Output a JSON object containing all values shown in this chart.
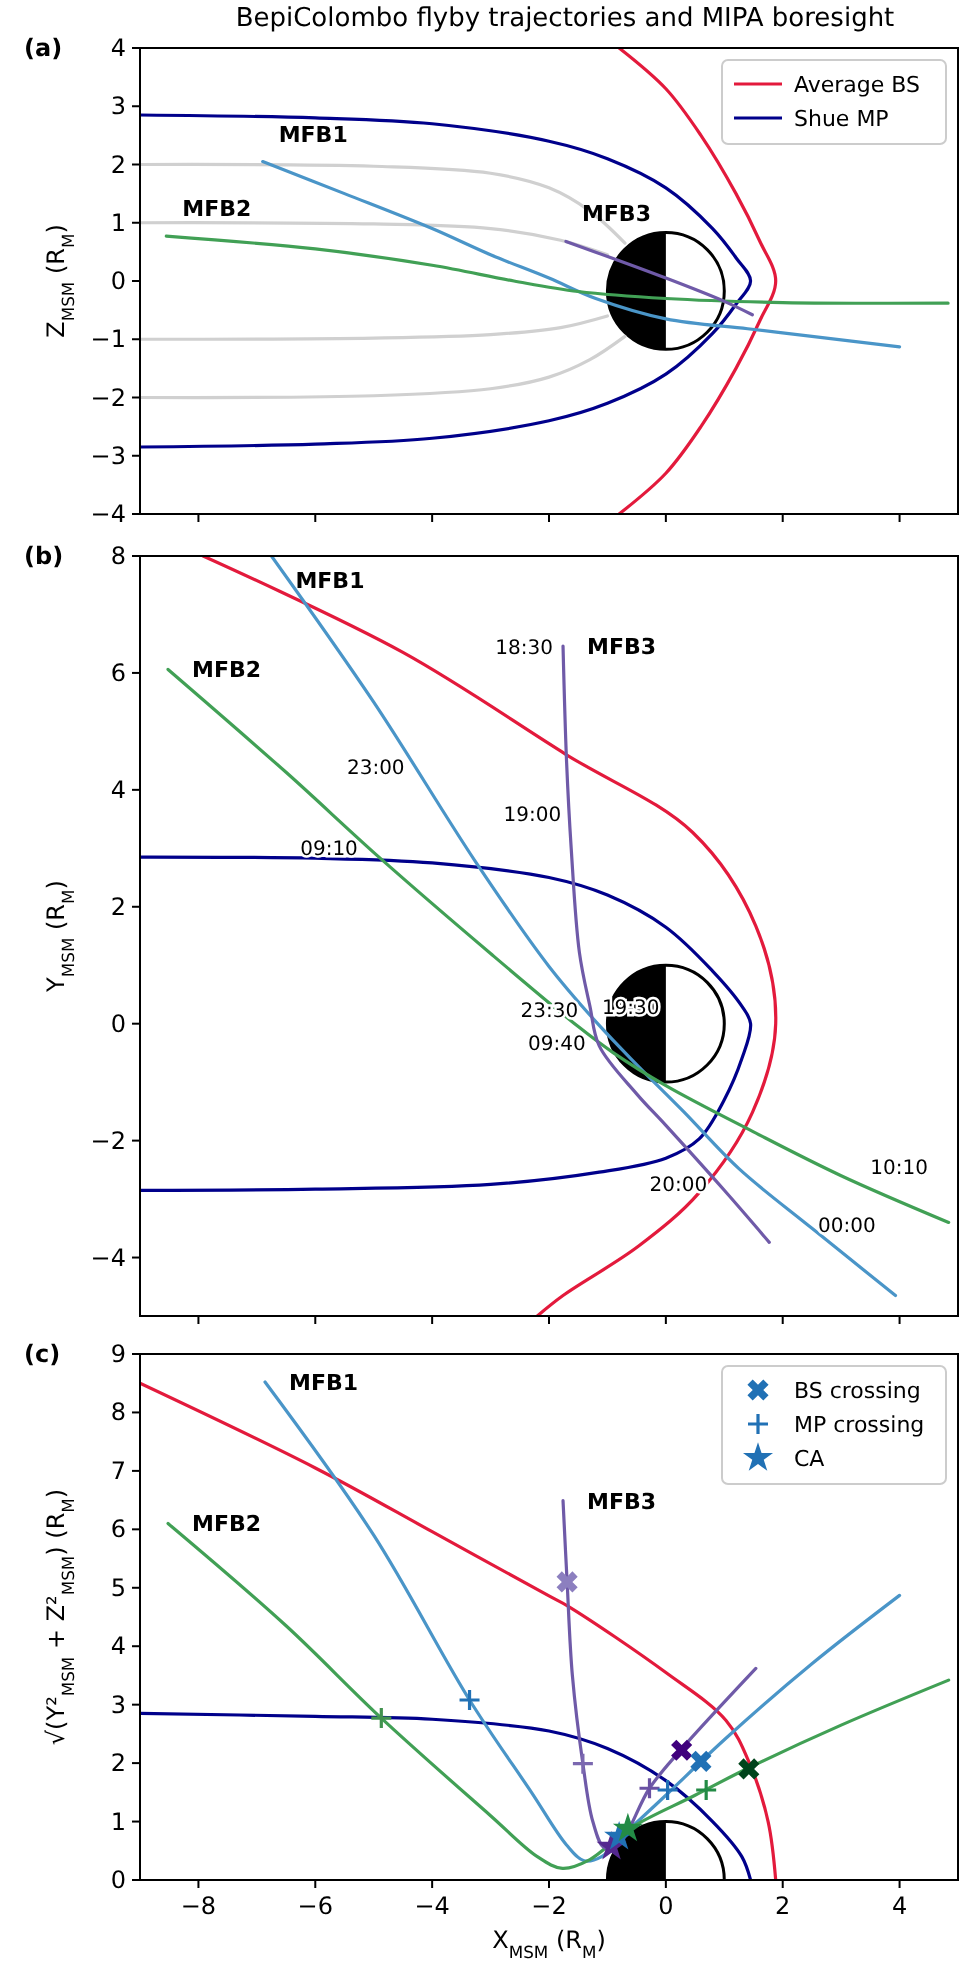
{
  "chart_data": [
    {
      "type": "line",
      "title": "BepiColombo flyby trajectories and MIPA boresight",
      "ylabel": "Z$_{MSM}$ (R$_{M}$)",
      "xlim": [
        -9,
        5
      ],
      "xticks": [
        -8,
        -6,
        -4,
        -2,
        0,
        2,
        4
      ],
      "ylim": [
        -4,
        4
      ],
      "yticks": [
        -4,
        -3,
        -2,
        -1,
        0,
        1,
        2,
        3,
        4
      ],
      "tick_labels": "y",
      "legend": "top right",
      "annotations": [
        "(a)",
        {
          "text": "MFB1",
          "x": -6.9,
          "y": 2.05
        },
        {
          "text": "MFB2",
          "x": -8.55,
          "y": 0.77
        },
        {
          "text": "MFB3",
          "x": -1.71,
          "y": 0.68
        }
      ],
      "series": [
        {
          "color": "#d0d0d0",
          "x": [
            -9,
            -5,
            -3,
            -2,
            -1.3,
            -0.7
          ],
          "values": [
            2,
            1.97,
            1.85,
            1.6,
            1.2,
            0.65
          ]
        },
        {
          "color": "#d0d0d0",
          "x": [
            -9,
            -5,
            -3,
            -1.8,
            -1
          ],
          "values": [
            1,
            0.98,
            0.9,
            0.7,
            0.45
          ]
        },
        {
          "color": "#d0d0d0",
          "x": [
            -9,
            -5,
            -3,
            -1.8,
            -1
          ],
          "values": [
            -1,
            -0.98,
            -0.92,
            -0.8,
            -0.6
          ]
        },
        {
          "color": "#d0d0d0",
          "x": [
            -9,
            -5,
            -3,
            -2,
            -1.3,
            -0.7
          ],
          "values": [
            -2,
            -1.97,
            -1.85,
            -1.65,
            -1.35,
            -0.95
          ]
        },
        {
          "name": "Average BS",
          "color": "#e31a3c",
          "x": [
            -0.8,
            0,
            0.6,
            1.2,
            1.6,
            1.88,
            1.6,
            1.2,
            0.6,
            0,
            -0.8
          ],
          "values": [
            4,
            3.3,
            2.5,
            1.5,
            0.7,
            0,
            -0.7,
            -1.5,
            -2.5,
            -3.3,
            -4
          ]
        },
        {
          "name": "Shue MP",
          "color": "#00008b",
          "x": [
            -9,
            -6,
            -4,
            -2,
            -1,
            0,
            0.8,
            1.2,
            1.45,
            1.2,
            0.8,
            0,
            -1,
            -2,
            -4,
            -6,
            -9
          ],
          "values": [
            2.85,
            2.8,
            2.7,
            2.4,
            2.1,
            1.6,
            0.9,
            0.4,
            0,
            -0.4,
            -0.9,
            -1.6,
            -2.1,
            -2.4,
            -2.7,
            -2.8,
            -2.85
          ]
        },
        {
          "color": "#4a95c8",
          "x": [
            -6.9,
            -5.5,
            -4,
            -3,
            -2,
            -1.2,
            0,
            1.4,
            2.5,
            4.0
          ],
          "values": [
            2.05,
            1.5,
            0.9,
            0.45,
            0.05,
            -0.3,
            -0.65,
            -0.82,
            -0.95,
            -1.13
          ]
        },
        {
          "color": "#41a055",
          "x": [
            -8.55,
            -6,
            -4,
            -2.6,
            -1.5,
            0,
            2,
            4.83
          ],
          "values": [
            0.77,
            0.55,
            0.27,
            0,
            -0.18,
            -0.3,
            -0.37,
            -0.38
          ]
        },
        {
          "color": "#6f5aa8",
          "x": [
            -1.71,
            0,
            1.0,
            1.48
          ],
          "values": [
            0.68,
            0.05,
            -0.35,
            -0.58
          ]
        }
      ]
    },
    {
      "type": "line",
      "ylabel": "Y$_{MSM}$ (R$_{M}$)",
      "xlim": [
        -9,
        5
      ],
      "xticks": [
        -8,
        -6,
        -4,
        -2,
        0,
        2,
        4
      ],
      "ylim": [
        -5,
        8
      ],
      "yticks": [
        -4,
        -2,
        0,
        2,
        4,
        6,
        8
      ],
      "tick_labels": "y",
      "annotations": [
        "(b)",
        {
          "text": "MFB1",
          "x": -6.75,
          "y": 8.0
        },
        {
          "text": "MFB2",
          "x": -8.52,
          "y": 6.06
        },
        {
          "text": "MFB3",
          "x": -1.76,
          "y": 6.46
        },
        {
          "text": "18:30",
          "x": -1.76,
          "y": 6.46
        },
        {
          "text": "19:00",
          "x": -1.62,
          "y": 3.6
        },
        {
          "text": "19:30",
          "x": -1.3,
          "y": 0.3
        },
        {
          "text": "20:00",
          "x": 0.88,
          "y": -2.72
        },
        {
          "text": "23:00",
          "x": -4.3,
          "y": 4.41
        },
        {
          "text": "23:30",
          "x": -1.33,
          "y": 0.25
        },
        {
          "text": "00:00",
          "x": 2.4,
          "y": -3.43
        },
        {
          "text": "09:10",
          "x": -5.1,
          "y": 3.02
        },
        {
          "text": "09:40",
          "x": -1.2,
          "y": -0.32
        },
        {
          "text": "10:10",
          "x": 3.5,
          "y": -2.85
        }
      ],
      "series": [
        {
          "color": "#e31a3c",
          "x": [
            -7.92,
            -4.5,
            -1.7,
            0.46,
            1.54,
            1.88,
            1.48,
            0.57,
            -0.46,
            -1.76,
            -2.2
          ],
          "values": [
            8.0,
            6.35,
            4.6,
            3.27,
            1.67,
            0,
            -1.52,
            -2.89,
            -3.8,
            -4.65,
            -5
          ]
        },
        {
          "color": "#00008b",
          "x": [
            -9,
            -6,
            -4,
            -2,
            -1,
            0,
            0.8,
            1.3,
            1.45,
            1.3,
            1.0,
            0.57,
            0,
            -1.14,
            -3,
            -6,
            -9
          ],
          "values": [
            2.85,
            2.83,
            2.75,
            2.5,
            2.2,
            1.65,
            0.9,
            0.3,
            0,
            -0.6,
            -1.3,
            -1.97,
            -2.3,
            -2.54,
            -2.75,
            -2.83,
            -2.85
          ]
        },
        {
          "color": "#4a95c8",
          "x": [
            -6.75,
            -5,
            -3.25,
            -2,
            -1.14,
            -0.5,
            0.3,
            1.25,
            2.5,
            3.93
          ],
          "values": [
            8.0,
            5.5,
            2.76,
            0.98,
            -0.03,
            -0.7,
            -1.5,
            -2.48,
            -3.5,
            -4.65
          ]
        },
        {
          "color": "#41a055",
          "x": [
            -8.52,
            -6.5,
            -4.9,
            -3,
            -1.5,
            -0.91,
            0,
            1.5,
            3,
            4.84
          ],
          "values": [
            6.06,
            4.3,
            2.84,
            1.2,
            -0.05,
            -0.49,
            -1.06,
            -1.85,
            -2.6,
            -3.4
          ]
        },
        {
          "color": "#6f5aa8",
          "x": [
            -1.76,
            -1.7,
            -1.62,
            -1.48,
            -1.3,
            -1.14,
            -0.5,
            0,
            1,
            1.77
          ],
          "values": [
            6.46,
            4.5,
            3,
            1.22,
            0.3,
            -0.38,
            -1.2,
            -1.74,
            -2.85,
            -3.74
          ]
        }
      ]
    },
    {
      "type": "line",
      "xlabel": "X$_{MSM}$ (R$_{M}$)",
      "ylabel": "√(Y²$_{MSM}$ + Z²$_{MSM}$) (R$_{M}$)",
      "xlim": [
        -9,
        5
      ],
      "xticks": [
        -8,
        -6,
        -4,
        -2,
        0,
        2,
        4
      ],
      "ylim": [
        0,
        9
      ],
      "yticks": [
        0,
        1,
        2,
        3,
        4,
        5,
        6,
        7,
        8,
        9
      ],
      "legend": "top right",
      "annotations": [
        "(c)",
        {
          "text": "MFB1",
          "x": -6.86,
          "y": 8.52
        },
        {
          "text": "MFB2",
          "x": -8.52,
          "y": 6.1
        },
        {
          "text": "MFB3",
          "x": -1.76,
          "y": 6.49
        }
      ],
      "series": [
        {
          "color": "#e31a3c",
          "x": [
            -9,
            -6,
            -4,
            -2,
            -1.65,
            0,
            1.03,
            1.43,
            1.75,
            1.88
          ],
          "values": [
            8.5,
            7.05,
            5.96,
            4.86,
            4.67,
            3.55,
            2.73,
            2.0,
            1.0,
            0
          ]
        },
        {
          "color": "#00008b",
          "x": [
            -9,
            -6,
            -4,
            -2,
            -1,
            0,
            0.8,
            1.3,
            1.45
          ],
          "values": [
            2.85,
            2.8,
            2.75,
            2.55,
            2.25,
            1.7,
            1.0,
            0.4,
            0
          ]
        },
        {
          "color": "#4a95c8",
          "x": [
            -6.86,
            -5,
            -3.36,
            -2.3,
            -1.7,
            -1.4,
            -1.1,
            -0.8,
            0,
            1,
            2.5,
            4.0
          ],
          "values": [
            8.52,
            5.9,
            3.08,
            1.5,
            0.6,
            0.33,
            0.4,
            0.7,
            1.45,
            2.4,
            3.7,
            4.87
          ]
        },
        {
          "color": "#41a055",
          "x": [
            -8.52,
            -6.5,
            -4.87,
            -3,
            -2.2,
            -1.77,
            -1.3,
            -0.62,
            0.5,
            1.42,
            3,
            4.84
          ],
          "values": [
            6.1,
            4.35,
            2.77,
            1.1,
            0.4,
            0.2,
            0.35,
            0.88,
            1.45,
            1.92,
            2.65,
            3.42
          ]
        },
        {
          "color": "#6f5aa8",
          "x": [
            -1.76,
            -1.69,
            -1.6,
            -1.42,
            -1.25,
            -1.05,
            -0.8,
            -0.28,
            0.25,
            1.54
          ],
          "values": [
            6.49,
            5.1,
            3.5,
            1.99,
            1.0,
            0.55,
            0.62,
            1.57,
            2.22,
            3.62
          ]
        },
        {
          "type": "scatter",
          "name": "BS crossing",
          "marker": "cross",
          "color": "#2171b5",
          "x": [
            -1.69,
            0.27,
            0.6,
            1.42
          ],
          "values": [
            5.1,
            2.22,
            2.03,
            1.9
          ],
          "colors": [
            "#8c7fbf",
            "#3f007d",
            "#2171b5",
            "#00441b"
          ]
        },
        {
          "type": "scatter",
          "name": "MP crossing",
          "marker": "plus",
          "color": "#2171b5",
          "x": [
            -4.87,
            -3.36,
            -1.42,
            -0.28,
            0.03,
            0.69
          ],
          "values": [
            2.77,
            3.08,
            1.99,
            1.57,
            1.54,
            1.54
          ],
          "colors": [
            "#41924f",
            "#2171b5",
            "#7b68b0",
            "#6a51a3",
            "#2171b5",
            "#238b45"
          ]
        },
        {
          "type": "scatter",
          "name": "CA",
          "marker": "star",
          "color": "#2171b5",
          "x": [
            -0.93,
            -0.8,
            -0.65
          ],
          "values": [
            0.57,
            0.74,
            0.88
          ],
          "colors": [
            "#54278f",
            "#2171b5",
            "#238b45"
          ]
        }
      ]
    }
  ]
}
